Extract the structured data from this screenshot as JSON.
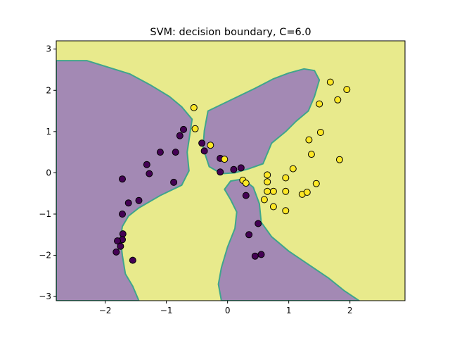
{
  "chart_data": {
    "type": "scatter",
    "title": "SVM: decision boundary, C=6.0",
    "xlabel": "",
    "ylabel": "",
    "xlim": [
      -2.8,
      2.9
    ],
    "ylim": [
      -3.1,
      3.2
    ],
    "x_ticks": [
      -2,
      -1,
      0,
      1,
      2
    ],
    "y_ticks": [
      -3,
      -2,
      -1,
      0,
      1,
      2,
      3
    ],
    "grid": false,
    "legend": "none",
    "colors": {
      "class_0_region": "#a389b4",
      "class_1_region": "#e8ea8c",
      "boundary": "#3fa58c",
      "class_0_point": "#440154",
      "class_1_point": "#fde725",
      "point_edge": "#000000"
    },
    "decision_regions": [
      {
        "name": "class 0 region (left and centre)",
        "class": 0,
        "polygon": [
          [
            -2.8,
            2.72
          ],
          [
            -2.3,
            2.72
          ],
          [
            -1.6,
            2.4
          ],
          [
            -1.25,
            2.12
          ],
          [
            -0.95,
            1.85
          ],
          [
            -0.75,
            1.6
          ],
          [
            -0.58,
            1.3
          ],
          [
            -0.62,
            0.9
          ],
          [
            -0.66,
            0.5
          ],
          [
            -0.63,
            0.05
          ],
          [
            -0.75,
            -0.3
          ],
          [
            -1.1,
            -0.55
          ],
          [
            -1.45,
            -0.85
          ],
          [
            -1.62,
            -1.05
          ],
          [
            -1.72,
            -1.3
          ],
          [
            -1.75,
            -1.6
          ],
          [
            -1.72,
            -2.0
          ],
          [
            -1.67,
            -2.45
          ],
          [
            -1.55,
            -2.75
          ],
          [
            -1.45,
            -3.1
          ],
          [
            -2.8,
            -3.1
          ]
        ]
      },
      {
        "name": "class 0 region (upper centre lobe)",
        "class": 0,
        "polygon": [
          [
            -0.38,
            1.02
          ],
          [
            -0.32,
            1.5
          ],
          [
            -0.15,
            1.62
          ],
          [
            0.1,
            1.8
          ],
          [
            0.45,
            2.05
          ],
          [
            0.75,
            2.28
          ],
          [
            1.0,
            2.42
          ],
          [
            1.25,
            2.52
          ],
          [
            1.42,
            2.48
          ],
          [
            1.5,
            2.25
          ],
          [
            1.42,
            1.85
          ],
          [
            1.32,
            1.5
          ],
          [
            1.12,
            1.25
          ],
          [
            0.95,
            1.0
          ],
          [
            0.72,
            0.72
          ],
          [
            0.58,
            0.22
          ],
          [
            0.35,
            0.1
          ],
          [
            0.12,
            0.0
          ],
          [
            -0.1,
            -0.02
          ],
          [
            -0.3,
            0.15
          ],
          [
            -0.4,
            0.6
          ]
        ]
      },
      {
        "name": "class 0 region (lower centre)",
        "class": 0,
        "polygon": [
          [
            -0.1,
            -3.1
          ],
          [
            -0.15,
            -2.7
          ],
          [
            -0.1,
            -2.3
          ],
          [
            0.0,
            -1.8
          ],
          [
            0.12,
            -1.35
          ],
          [
            0.15,
            -0.95
          ],
          [
            0.05,
            -0.65
          ],
          [
            -0.05,
            -0.4
          ],
          [
            0.05,
            -0.2
          ],
          [
            0.25,
            -0.15
          ],
          [
            0.42,
            -0.35
          ],
          [
            0.52,
            -0.75
          ],
          [
            0.55,
            -1.2
          ],
          [
            0.72,
            -1.55
          ],
          [
            1.0,
            -1.9
          ],
          [
            1.35,
            -2.25
          ],
          [
            1.65,
            -2.55
          ],
          [
            1.9,
            -2.85
          ],
          [
            2.15,
            -3.1
          ]
        ]
      }
    ],
    "series": [
      {
        "class": 0,
        "points": [
          [
            -0.72,
            1.05
          ],
          [
            -0.78,
            0.9
          ],
          [
            -0.42,
            0.72
          ],
          [
            -0.38,
            0.53
          ],
          [
            -0.85,
            0.5
          ],
          [
            -1.1,
            0.5
          ],
          [
            -1.32,
            0.2
          ],
          [
            -1.28,
            -0.02
          ],
          [
            -0.12,
            0.02
          ],
          [
            0.1,
            0.08
          ],
          [
            0.22,
            0.12
          ],
          [
            -0.12,
            0.35
          ],
          [
            -0.88,
            -0.23
          ],
          [
            -1.45,
            -0.67
          ],
          [
            -1.62,
            -0.73
          ],
          [
            -1.72,
            -0.15
          ],
          [
            -1.72,
            -1.0
          ],
          [
            -1.71,
            -1.48
          ],
          [
            -1.72,
            -1.62
          ],
          [
            -1.8,
            -1.65
          ],
          [
            -1.75,
            -1.78
          ],
          [
            -1.82,
            -1.92
          ],
          [
            -1.55,
            -2.12
          ],
          [
            0.3,
            -0.55
          ],
          [
            0.5,
            -1.23
          ],
          [
            0.35,
            -1.5
          ],
          [
            0.45,
            -2.02
          ],
          [
            0.55,
            -1.98
          ]
        ]
      },
      {
        "class": 1,
        "points": [
          [
            -0.55,
            1.58
          ],
          [
            -0.53,
            1.07
          ],
          [
            -0.28,
            0.67
          ],
          [
            -0.05,
            0.33
          ],
          [
            0.25,
            -0.18
          ],
          [
            0.3,
            -0.25
          ],
          [
            0.65,
            -0.05
          ],
          [
            0.65,
            -0.22
          ],
          [
            0.65,
            -0.45
          ],
          [
            0.75,
            -0.45
          ],
          [
            0.6,
            -0.65
          ],
          [
            0.75,
            -0.82
          ],
          [
            0.95,
            -0.12
          ],
          [
            0.95,
            -0.45
          ],
          [
            0.95,
            -0.92
          ],
          [
            1.07,
            0.1
          ],
          [
            1.22,
            -0.52
          ],
          [
            1.3,
            -0.47
          ],
          [
            1.45,
            -0.26
          ],
          [
            1.37,
            0.45
          ],
          [
            1.33,
            0.8
          ],
          [
            1.52,
            0.98
          ],
          [
            1.5,
            1.67
          ],
          [
            1.68,
            2.2
          ],
          [
            1.95,
            2.02
          ],
          [
            1.8,
            1.77
          ],
          [
            1.83,
            0.32
          ]
        ]
      }
    ]
  }
}
